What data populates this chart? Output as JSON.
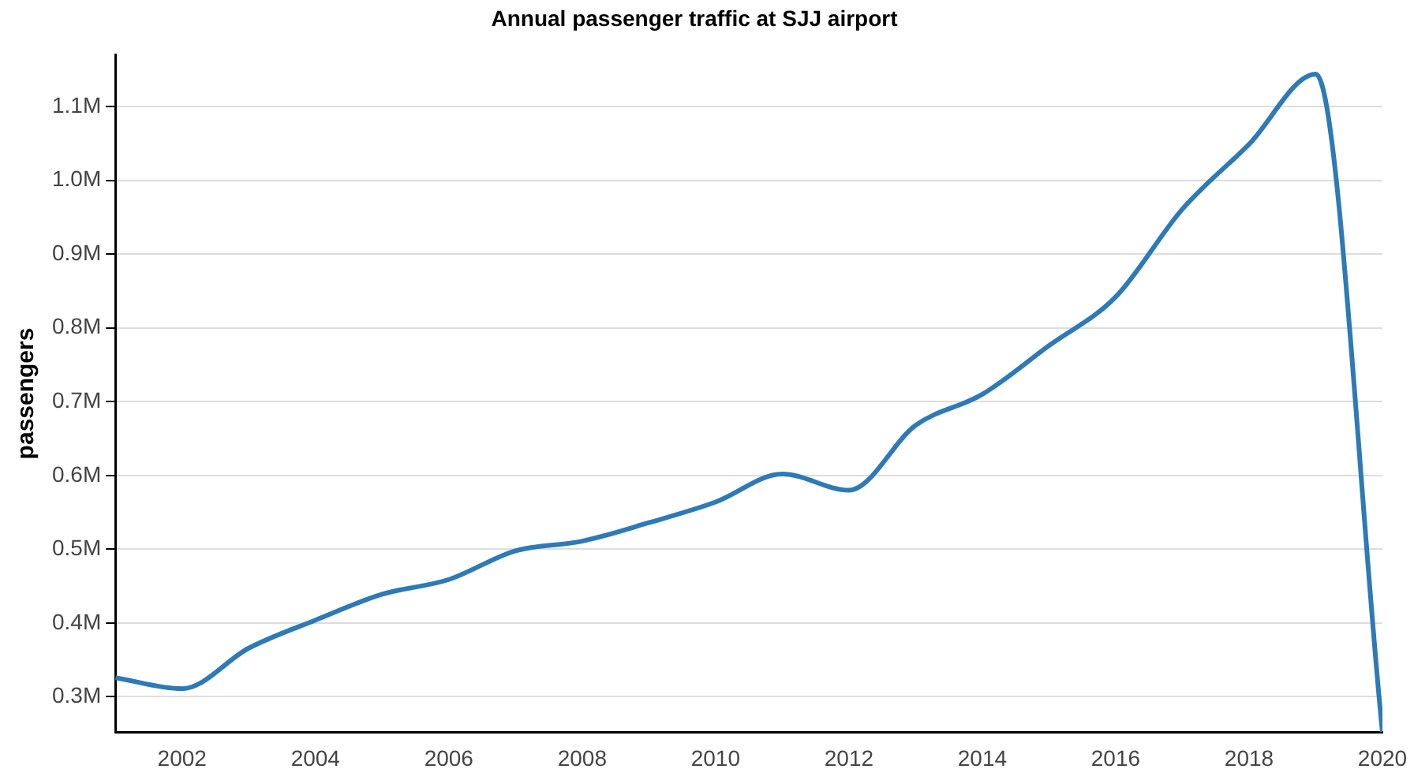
{
  "chart_data": {
    "type": "line",
    "title": "Annual passenger traffic at SJJ airport",
    "ylabel": "passengers",
    "x": [
      2001,
      2002,
      2003,
      2004,
      2005,
      2006,
      2007,
      2008,
      2009,
      2010,
      2011,
      2012,
      2013,
      2014,
      2015,
      2016,
      2017,
      2018,
      2019,
      2020
    ],
    "series": [
      {
        "color": "#2e7ab6",
        "values": [
          326000,
          311000,
          366000,
          404000,
          439000,
          459000,
          498000,
          511000,
          536000,
          564000,
          602000,
          580000,
          668000,
          710000,
          776000,
          842000,
          961000,
          1049000,
          1144000,
          252000
        ]
      }
    ],
    "xlim": [
      2001,
      2020
    ],
    "xticks": [
      2002,
      2004,
      2006,
      2008,
      2010,
      2012,
      2014,
      2016,
      2018,
      2020
    ],
    "ylim": [
      252000,
      1170000
    ],
    "yticks": [
      {
        "value": 300000,
        "label": "0.3M"
      },
      {
        "value": 400000,
        "label": "0.4M"
      },
      {
        "value": 500000,
        "label": "0.5M"
      },
      {
        "value": 600000,
        "label": "0.6M"
      },
      {
        "value": 700000,
        "label": "0.7M"
      },
      {
        "value": 800000,
        "label": "0.8M"
      },
      {
        "value": 900000,
        "label": "0.9M"
      },
      {
        "value": 1000000,
        "label": "1.0M"
      },
      {
        "value": 1100000,
        "label": "1.1M"
      }
    ],
    "grid": "y",
    "legend": false,
    "marker": "none",
    "line_style": "solid"
  }
}
